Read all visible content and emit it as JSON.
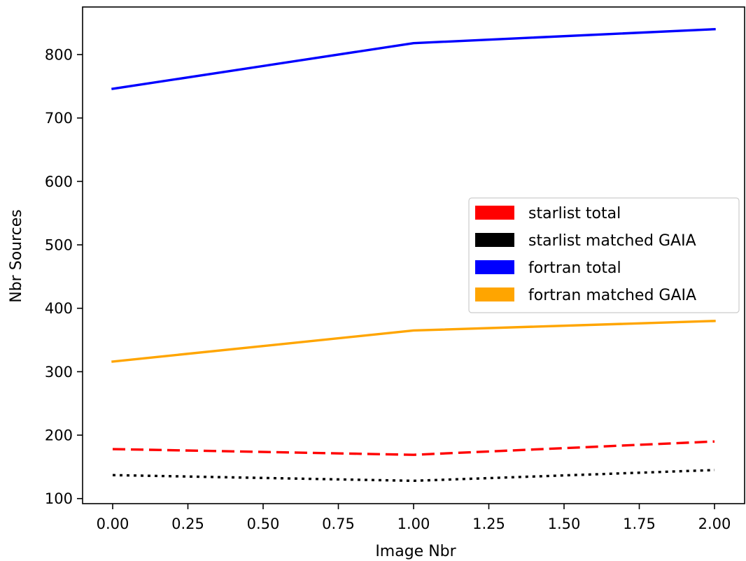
{
  "chart_data": {
    "type": "line",
    "title": "",
    "xlabel": "Image Nbr",
    "ylabel": "Nbr Sources",
    "x": [
      0,
      1,
      2
    ],
    "xlim": [
      -0.1,
      2.1
    ],
    "ylim": [
      92,
      875
    ],
    "x_ticks": [
      0.0,
      0.25,
      0.5,
      0.75,
      1.0,
      1.25,
      1.5,
      1.75,
      2.0
    ],
    "x_tick_labels": [
      "0.00",
      "0.25",
      "0.50",
      "0.75",
      "1.00",
      "1.25",
      "1.50",
      "1.75",
      "2.00"
    ],
    "y_ticks": [
      100,
      200,
      300,
      400,
      500,
      600,
      700,
      800
    ],
    "y_tick_labels": [
      "100",
      "200",
      "300",
      "400",
      "500",
      "600",
      "700",
      "800"
    ],
    "grid": false,
    "legend_position": "center-right",
    "series": [
      {
        "name": "starlist total",
        "values": [
          178,
          169,
          190
        ],
        "color": "#ff0000",
        "linestyle": "dashed"
      },
      {
        "name": "starlist matched GAIA",
        "values": [
          137,
          128,
          145
        ],
        "color": "#000000",
        "linestyle": "dotted"
      },
      {
        "name": "fortran total",
        "values": [
          746,
          818,
          840
        ],
        "color": "#0000ff",
        "linestyle": "solid"
      },
      {
        "name": "fortran matched GAIA",
        "values": [
          316,
          365,
          380
        ],
        "color": "#ffa500",
        "linestyle": "solid"
      }
    ]
  }
}
